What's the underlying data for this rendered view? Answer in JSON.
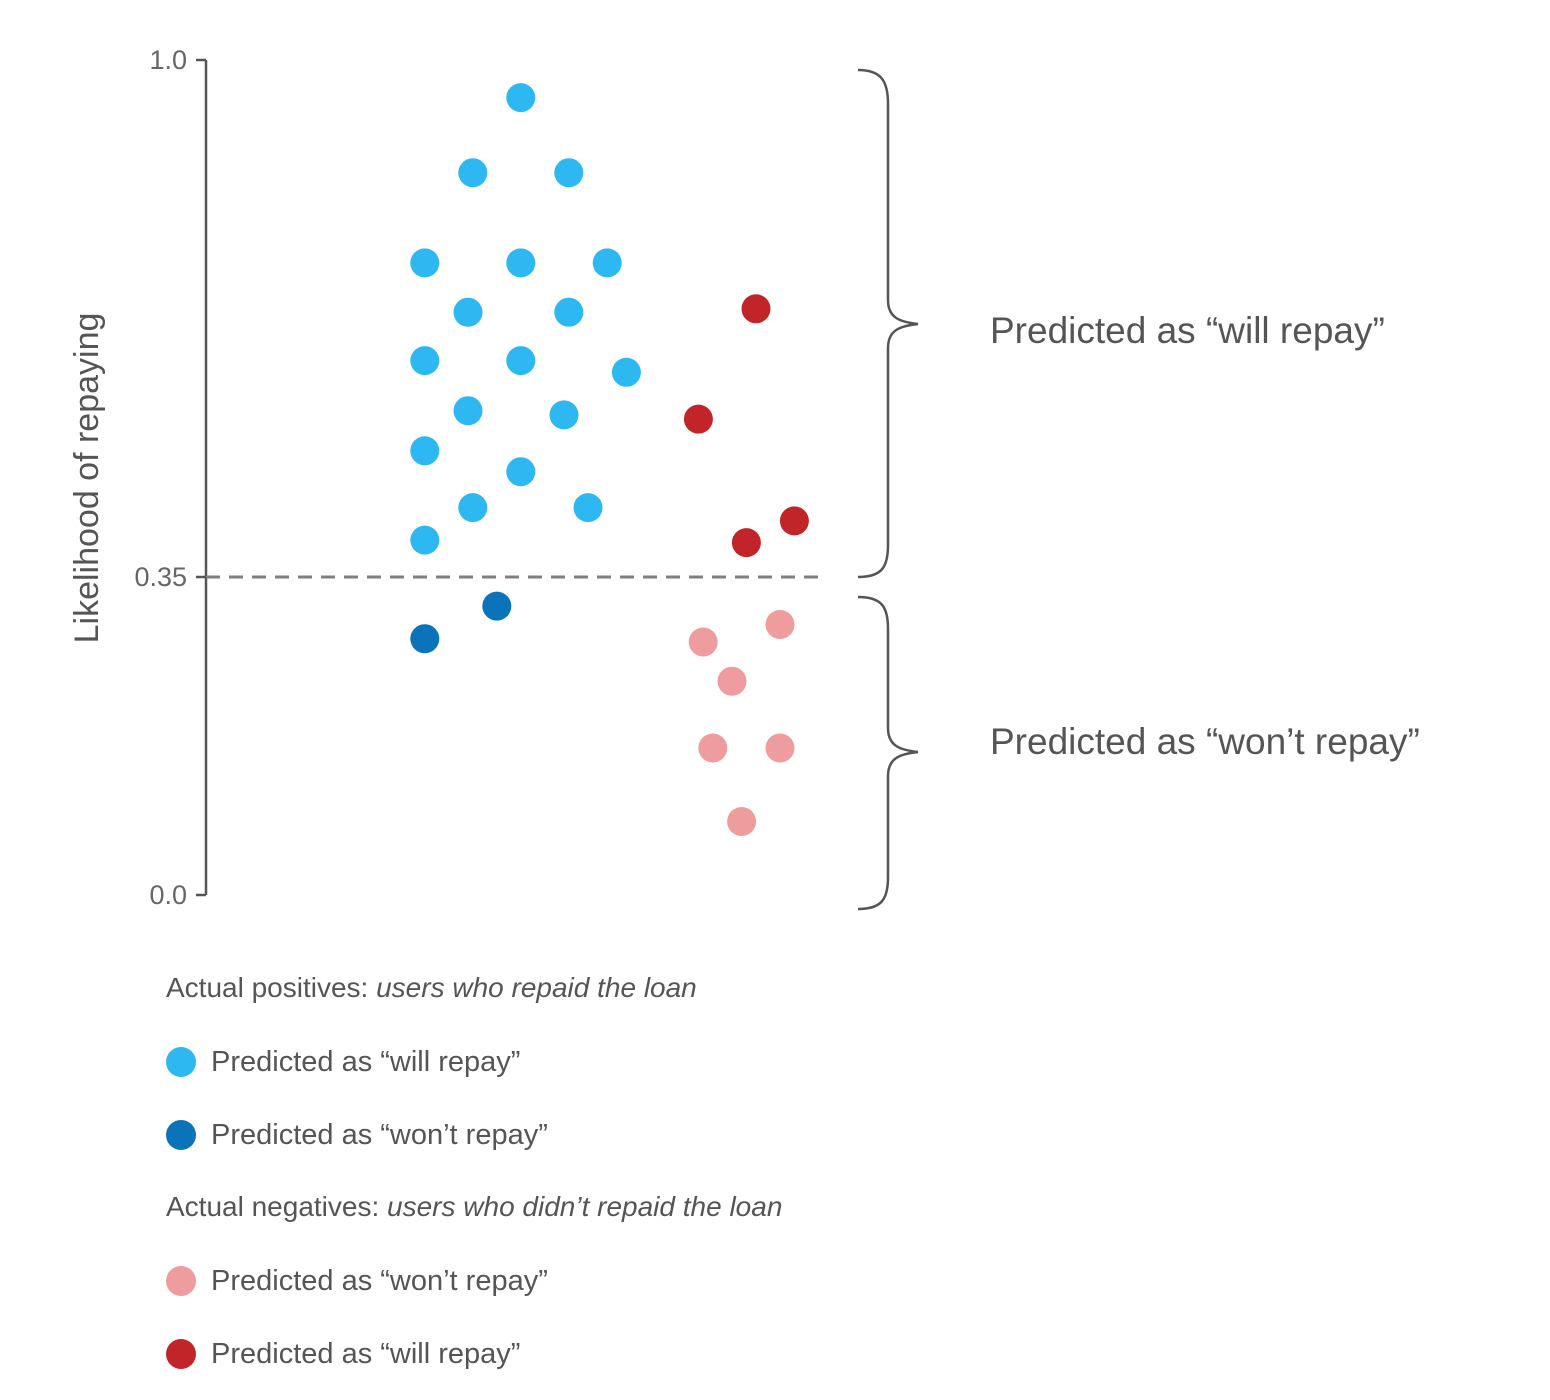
{
  "chart_data": {
    "type": "scatter",
    "title": "",
    "ylabel": "Likelihood of repaying",
    "ylim": [
      0.0,
      1.0
    ],
    "yticks": [
      "1.0",
      "0.35",
      "0.0"
    ],
    "ytick_values": [
      1.0,
      0.35,
      0.0
    ],
    "threshold": 0.35,
    "grid": false,
    "groups": [
      {
        "label": "Predicted as “will repay”",
        "range": [
          0.35,
          1.0
        ]
      },
      {
        "label": "Predicted as “won’t repay”",
        "range": [
          0.0,
          0.35
        ]
      }
    ],
    "colors": {
      "positive_will": "#2EB8F2",
      "positive_wont": "#0A73B9",
      "negative_wont": "#EE9C9D",
      "negative_will": "#C22529",
      "axis": "#555555",
      "threshold_line": "#7f7f7f"
    },
    "series": [
      {
        "key": "positive_will",
        "points": [
          {
            "x": 0.41,
            "y": 0.955
          },
          {
            "x": 0.31,
            "y": 0.865
          },
          {
            "x": 0.51,
            "y": 0.865
          },
          {
            "x": 0.21,
            "y": 0.757
          },
          {
            "x": 0.41,
            "y": 0.757
          },
          {
            "x": 0.59,
            "y": 0.757
          },
          {
            "x": 0.3,
            "y": 0.698
          },
          {
            "x": 0.51,
            "y": 0.698
          },
          {
            "x": 0.21,
            "y": 0.64
          },
          {
            "x": 0.41,
            "y": 0.64
          },
          {
            "x": 0.63,
            "y": 0.626
          },
          {
            "x": 0.3,
            "y": 0.58
          },
          {
            "x": 0.5,
            "y": 0.575
          },
          {
            "x": 0.21,
            "y": 0.532
          },
          {
            "x": 0.41,
            "y": 0.507
          },
          {
            "x": 0.31,
            "y": 0.464
          },
          {
            "x": 0.55,
            "y": 0.464
          },
          {
            "x": 0.21,
            "y": 0.425
          }
        ]
      },
      {
        "key": "positive_wont",
        "points": [
          {
            "x": 0.36,
            "y": 0.346
          },
          {
            "x": 0.21,
            "y": 0.307
          }
        ]
      },
      {
        "key": "negative_wont",
        "points": [
          {
            "x": 0.95,
            "y": 0.324
          },
          {
            "x": 0.79,
            "y": 0.303
          },
          {
            "x": 0.85,
            "y": 0.256
          },
          {
            "x": 0.81,
            "y": 0.176
          },
          {
            "x": 0.95,
            "y": 0.176
          },
          {
            "x": 0.87,
            "y": 0.088
          }
        ]
      },
      {
        "key": "negative_will",
        "points": [
          {
            "x": 0.9,
            "y": 0.702
          },
          {
            "x": 0.78,
            "y": 0.57
          },
          {
            "x": 0.98,
            "y": 0.448
          },
          {
            "x": 0.88,
            "y": 0.422
          }
        ]
      }
    ]
  },
  "legend": {
    "positives_heading": "Actual positives: ",
    "positives_heading_italic": "users who repaid the loan",
    "negatives_heading": "Actual negatives: ",
    "negatives_heading_italic": "users who didn’t repaid the loan",
    "items": [
      {
        "key": "positive_will",
        "label": "Predicted as “will repay”"
      },
      {
        "key": "positive_wont",
        "label": "Predicted as “won’t repay”"
      },
      {
        "key": "negative_wont",
        "label": "Predicted as “won’t repay”"
      },
      {
        "key": "negative_will",
        "label": "Predicted as “will repay”"
      }
    ]
  }
}
